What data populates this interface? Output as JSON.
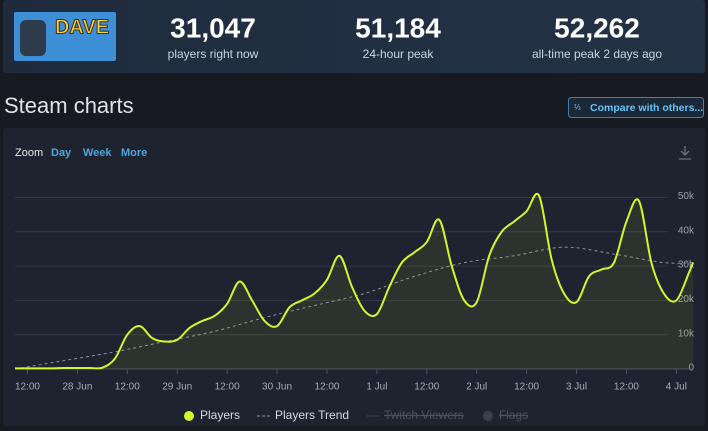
{
  "header": {
    "logo_text": "DAVE",
    "stats": [
      {
        "value": "31,047",
        "label": "players right now"
      },
      {
        "value": "51,184",
        "label": "24-hour peak"
      },
      {
        "value": "52,262",
        "label": "all-time peak 2 days ago"
      }
    ]
  },
  "section_title": "Steam charts",
  "compare_button": "Compare with others...",
  "zoom": {
    "label": "Zoom",
    "options": [
      "Day",
      "Week",
      "More"
    ]
  },
  "chart_data": {
    "type": "line",
    "xlim": [
      9,
      172
    ],
    "xticks": [
      {
        "value": 12,
        "label": "12:00"
      },
      {
        "value": 24,
        "label": "28 Jun"
      },
      {
        "value": 36,
        "label": "12:00"
      },
      {
        "value": 48,
        "label": "29 Jun"
      },
      {
        "value": 60,
        "label": "12:00"
      },
      {
        "value": 72,
        "label": "30 Jun"
      },
      {
        "value": 84,
        "label": "12:00"
      },
      {
        "value": 96,
        "label": "1 Jul"
      },
      {
        "value": 108,
        "label": "12:00"
      },
      {
        "value": 120,
        "label": "2 Jul"
      },
      {
        "value": 132,
        "label": "12:00"
      },
      {
        "value": 144,
        "label": "3 Jul"
      },
      {
        "value": 156,
        "label": "12:00"
      },
      {
        "value": 168,
        "label": "4 Jul"
      }
    ],
    "ylim": [
      0,
      58000
    ],
    "yticks": [
      0,
      {
        "value": 10000,
        "label": "10k"
      },
      {
        "value": 20000,
        "label": "20k"
      },
      {
        "value": 30000,
        "label": "30k"
      },
      {
        "value": 40000,
        "label": "40k"
      },
      {
        "value": 50000,
        "label": "50k"
      }
    ],
    "grid": true,
    "series": [
      {
        "name": "Players",
        "color": "#d4f52c",
        "area": true,
        "x": [
          9,
          12,
          15,
          18,
          21,
          24,
          27,
          30,
          33,
          36,
          39,
          42,
          45,
          48,
          51,
          54,
          57,
          60,
          63,
          66,
          69,
          72,
          75,
          78,
          81,
          84,
          87,
          90,
          93,
          96,
          99,
          102,
          105,
          108,
          111,
          114,
          117,
          120,
          123,
          126,
          129,
          132,
          135,
          138,
          141,
          144,
          147,
          150,
          153,
          156,
          159,
          162,
          165,
          168,
          171,
          172
        ],
        "values": [
          200,
          200,
          200,
          200,
          300,
          300,
          300,
          400,
          3000,
          10000,
          12500,
          9000,
          8000,
          8500,
          12000,
          14000,
          15500,
          19000,
          25500,
          20000,
          14000,
          12500,
          18000,
          20000,
          22000,
          26000,
          33000,
          24000,
          17000,
          16000,
          24000,
          31000,
          34000,
          37000,
          43500,
          30000,
          20000,
          19500,
          33000,
          40000,
          43000,
          46000,
          50500,
          32000,
          22000,
          19500,
          27000,
          29000,
          31000,
          43000,
          49000,
          31000,
          22000,
          20000,
          28000,
          31000
        ]
      },
      {
        "name": "Players Trend",
        "color": "#8a8f99",
        "dashed": true,
        "x": [
          9,
          21,
          33,
          45,
          57,
          69,
          81,
          93,
          105,
          117,
          129,
          141,
          153,
          165,
          172
        ],
        "values": [
          0,
          2500,
          5000,
          8000,
          11000,
          15000,
          18500,
          22000,
          27000,
          31000,
          33000,
          35500,
          33500,
          31000,
          31000
        ]
      }
    ],
    "legend_hidden": [
      "Twitch Viewers",
      "Flags"
    ]
  }
}
